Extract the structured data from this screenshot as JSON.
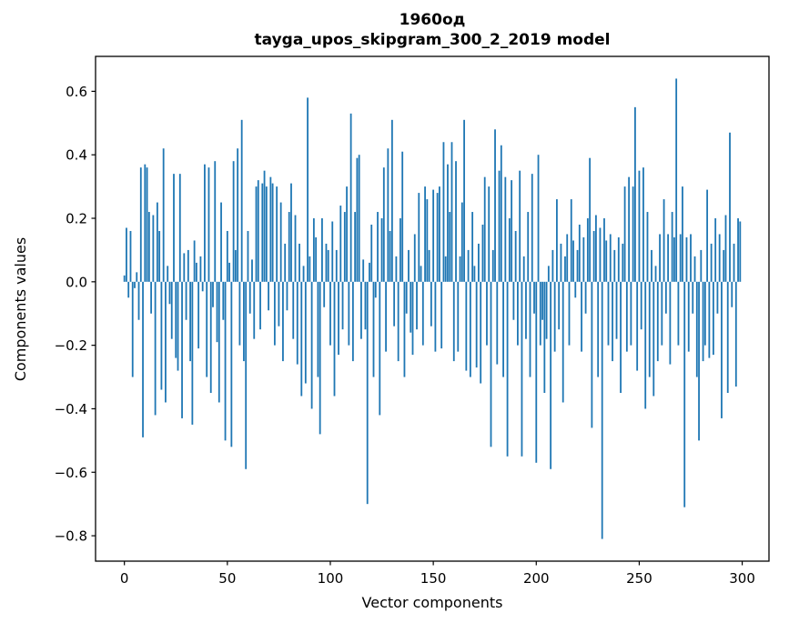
{
  "figure": {
    "title_line1": "1960од",
    "title_line2": "tayga_upos_skipgram_300_2_2019 model"
  },
  "chart_data": {
    "type": "bar",
    "title": "1960од — tayga_upos_skipgram_300_2_2019 model",
    "xlabel": "Vector components",
    "ylabel": "Components values",
    "legend": null,
    "grid": false,
    "bar_color": "#1f77b4",
    "bar_rel_width": 0.8,
    "xlim": [
      -14,
      313
    ],
    "ylim": [
      -0.88,
      0.71
    ],
    "xticks": [
      0,
      50,
      100,
      150,
      200,
      250,
      300
    ],
    "xtick_labels": [
      "0",
      "50",
      "100",
      "150",
      "200",
      "250",
      "300"
    ],
    "ytick_values": [
      0.6,
      0.4,
      0.2,
      0.0,
      -0.2,
      -0.4,
      -0.6,
      -0.8
    ],
    "ytick_labels": [
      "0.6",
      "0.4",
      "0.2",
      "0.0",
      "−0.2",
      "−0.4",
      "−0.6",
      "−0.8"
    ],
    "values": [
      0.02,
      0.17,
      -0.05,
      0.16,
      -0.3,
      -0.02,
      0.03,
      -0.12,
      0.36,
      -0.49,
      0.37,
      0.36,
      0.22,
      -0.1,
      0.21,
      -0.42,
      0.25,
      0.16,
      -0.34,
      0.42,
      -0.38,
      0.05,
      -0.07,
      -0.18,
      0.34,
      -0.24,
      -0.28,
      0.34,
      -0.43,
      0.09,
      -0.12,
      0.1,
      -0.25,
      -0.45,
      0.13,
      0.06,
      -0.21,
      0.08,
      -0.03,
      0.37,
      -0.3,
      0.36,
      -0.35,
      -0.08,
      0.38,
      -0.19,
      -0.38,
      0.25,
      -0.12,
      -0.5,
      0.16,
      0.06,
      -0.52,
      0.38,
      0.1,
      0.42,
      -0.2,
      0.51,
      -0.25,
      -0.59,
      0.16,
      -0.1,
      0.07,
      -0.18,
      0.3,
      0.32,
      -0.15,
      0.31,
      0.35,
      0.3,
      -0.09,
      0.33,
      0.31,
      -0.2,
      0.3,
      -0.14,
      0.25,
      -0.25,
      0.12,
      -0.09,
      0.22,
      0.31,
      -0.18,
      0.21,
      -0.26,
      0.12,
      -0.36,
      0.05,
      -0.32,
      0.58,
      0.08,
      -0.4,
      0.2,
      0.14,
      -0.3,
      -0.48,
      0.2,
      -0.08,
      0.12,
      0.1,
      -0.2,
      0.19,
      -0.36,
      0.1,
      -0.23,
      0.24,
      -0.15,
      0.22,
      0.3,
      -0.2,
      0.53,
      -0.25,
      0.22,
      0.39,
      0.4,
      -0.18,
      0.07,
      -0.15,
      -0.7,
      0.06,
      0.18,
      -0.3,
      -0.05,
      0.22,
      -0.42,
      0.2,
      0.36,
      -0.22,
      0.42,
      0.16,
      0.51,
      -0.14,
      0.08,
      -0.25,
      0.2,
      0.41,
      -0.3,
      -0.1,
      0.1,
      -0.16,
      -0.23,
      0.15,
      -0.15,
      0.28,
      0.05,
      -0.2,
      0.3,
      0.26,
      0.1,
      -0.14,
      0.29,
      -0.22,
      0.28,
      0.3,
      -0.21,
      0.44,
      0.08,
      0.37,
      0.22,
      0.44,
      -0.25,
      0.38,
      -0.22,
      0.08,
      0.25,
      0.51,
      -0.28,
      0.1,
      -0.3,
      0.22,
      0.05,
      -0.27,
      0.12,
      -0.32,
      0.18,
      0.33,
      -0.2,
      0.3,
      -0.52,
      0.1,
      0.48,
      -0.26,
      0.35,
      0.43,
      -0.3,
      0.33,
      -0.55,
      0.2,
      0.32,
      -0.12,
      0.16,
      -0.2,
      0.35,
      -0.55,
      0.08,
      -0.18,
      0.22,
      -0.3,
      0.34,
      -0.1,
      -0.57,
      0.4,
      -0.2,
      -0.12,
      -0.35,
      -0.18,
      0.05,
      -0.59,
      0.1,
      -0.22,
      0.26,
      -0.15,
      0.12,
      -0.38,
      0.08,
      0.15,
      -0.2,
      0.26,
      0.13,
      -0.05,
      0.1,
      0.18,
      -0.22,
      0.14,
      -0.1,
      0.2,
      0.39,
      -0.46,
      0.16,
      0.21,
      -0.3,
      0.17,
      -0.81,
      0.2,
      0.13,
      -0.2,
      0.15,
      -0.25,
      0.1,
      -0.18,
      0.14,
      -0.35,
      0.12,
      0.3,
      -0.22,
      0.33,
      -0.2,
      0.3,
      0.55,
      -0.28,
      0.35,
      -0.15,
      0.36,
      -0.4,
      0.22,
      -0.3,
      0.1,
      -0.36,
      0.05,
      -0.25,
      0.15,
      -0.2,
      0.26,
      -0.1,
      0.15,
      -0.26,
      0.22,
      0.14,
      0.64,
      -0.2,
      0.15,
      0.3,
      -0.71,
      0.14,
      -0.22,
      0.15,
      -0.1,
      0.08,
      -0.3,
      -0.5,
      0.1,
      -0.25,
      -0.2,
      0.29,
      -0.24,
      0.12,
      -0.23,
      0.2,
      -0.1,
      0.15,
      -0.43,
      0.1,
      0.21,
      -0.35,
      0.47,
      -0.08,
      0.12,
      -0.33,
      0.2,
      0.19
    ]
  }
}
